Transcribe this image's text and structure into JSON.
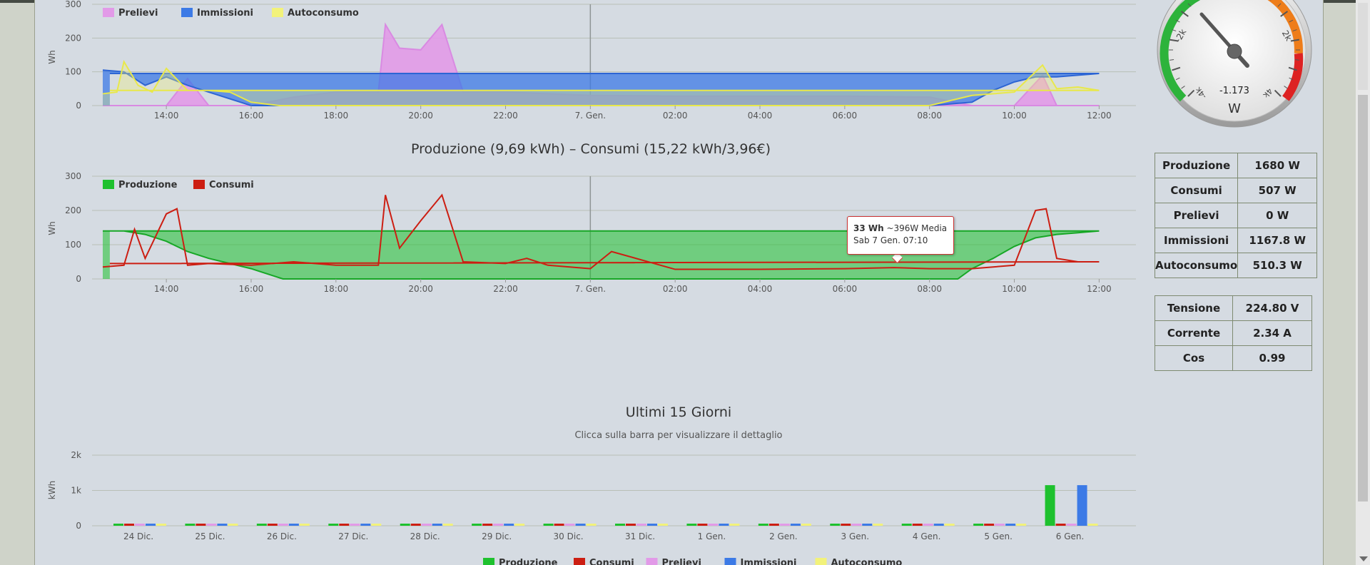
{
  "chart1": {
    "legend": [
      {
        "label": "Prelievi",
        "color": "#e29ae8"
      },
      {
        "label": "Immissioni",
        "color": "#3c7ae6"
      },
      {
        "label": "Autoconsumo",
        "color": "#f2f27a"
      }
    ],
    "ylabel": "Wh",
    "yticks": [
      "0",
      "100",
      "200",
      "300"
    ],
    "xticks": [
      "14:00",
      "16:00",
      "18:00",
      "20:00",
      "22:00",
      "7. Gen.",
      "02:00",
      "04:00",
      "06:00",
      "08:00",
      "10:00",
      "12:00"
    ]
  },
  "chart2": {
    "title": "Produzione (9,69 kWh) – Consumi (15,22 kWh/3,96€)",
    "legend": [
      {
        "label": "Produzione",
        "color": "#1ec12e"
      },
      {
        "label": "Consumi",
        "color": "#cc1e12"
      }
    ],
    "ylabel": "Wh",
    "yticks": [
      "0",
      "100",
      "200",
      "300"
    ],
    "xticks": [
      "14:00",
      "16:00",
      "18:00",
      "20:00",
      "22:00",
      "7. Gen.",
      "02:00",
      "04:00",
      "06:00",
      "08:00",
      "10:00",
      "12:00"
    ],
    "tooltip": {
      "value": "33 Wh",
      "detail": " ~396W Media",
      "date": "Sab 7 Gen. 07:10"
    }
  },
  "gauge": {
    "value": "-1.173",
    "unit": "W",
    "labels": [
      "-2k",
      "2k",
      "-4k",
      "4k"
    ]
  },
  "stats_power": [
    {
      "label": "Produzione",
      "value": "1680 W"
    },
    {
      "label": "Consumi",
      "value": "507 W"
    },
    {
      "label": "Prelievi",
      "value": "0 W"
    },
    {
      "label": "Immissioni",
      "value": "1167.8 W"
    },
    {
      "label": "Autoconsumo",
      "value": "510.3 W"
    }
  ],
  "stats_grid": [
    {
      "label": "Tensione",
      "value": "224.80 V"
    },
    {
      "label": "Corrente",
      "value": "2.34 A"
    },
    {
      "label": "Cos",
      "value": "0.99"
    }
  ],
  "chart3": {
    "title": "Ultimi 15 Giorni",
    "subtitle": "Clicca sulla barra per visualizzare il dettaglio",
    "ylabel": "kWh",
    "yticks": [
      "0",
      "1k",
      "2k"
    ],
    "legend": [
      {
        "label": "Produzione",
        "color": "#1ec12e"
      },
      {
        "label": "Consumi",
        "color": "#cc1e12"
      },
      {
        "label": "Prelievi",
        "color": "#e29ae8"
      },
      {
        "label": "Immissioni",
        "color": "#3c7ae6"
      },
      {
        "label": "Autoconsumo",
        "color": "#f2f27a"
      }
    ]
  },
  "chart_data": [
    {
      "type": "area",
      "ylabel": "Wh",
      "ylim": [
        0,
        300
      ],
      "x_range": [
        "6 Gen. 12:30",
        "7 Gen. 12:40"
      ],
      "shaded_period": [
        "6 Gen. 16:50",
        "7 Gen. 08:00"
      ],
      "series": [
        {
          "name": "Prelievi",
          "x": [
            "12:30",
            "13:00",
            "13:30",
            "14:00",
            "14:30",
            "15:00",
            "16:00",
            "17:00",
            "18:00",
            "19:00",
            "19:10",
            "19:30",
            "20:00",
            "20:30",
            "21:00",
            "22:00",
            "23:00",
            "7. Gen.",
            "02:00",
            "04:00",
            "06:00",
            "08:00",
            "09:00",
            "10:00",
            "10:40",
            "11:00",
            "12:00",
            "12:40"
          ],
          "y": [
            0,
            0,
            0,
            0,
            80,
            0,
            0,
            25,
            40,
            40,
            240,
            170,
            165,
            240,
            40,
            40,
            35,
            30,
            28,
            28,
            28,
            25,
            0,
            0,
            90,
            0,
            0,
            0
          ]
        },
        {
          "name": "Immissioni",
          "x": [
            "12:30",
            "13:00",
            "13:30",
            "14:00",
            "14:30",
            "15:00",
            "15:30",
            "16:00",
            "08:00",
            "09:00",
            "09:30",
            "10:00",
            "10:30",
            "11:00",
            "11:30",
            "12:00",
            "12:40"
          ],
          "y": [
            105,
            100,
            60,
            85,
            60,
            40,
            20,
            0,
            0,
            10,
            45,
            70,
            85,
            85,
            90,
            95,
            95
          ]
        },
        {
          "name": "Autoconsumo",
          "x": [
            "12:30",
            "12:50",
            "13:00",
            "13:20",
            "13:40",
            "14:00",
            "14:30",
            "15:00",
            "15:30",
            "16:00",
            "16:40",
            "08:00",
            "09:00",
            "10:00",
            "10:40",
            "11:00",
            "11:30",
            "12:00",
            "12:40"
          ],
          "y": [
            35,
            40,
            130,
            60,
            40,
            110,
            45,
            45,
            40,
            10,
            0,
            0,
            30,
            40,
            120,
            50,
            55,
            45,
            45
          ]
        }
      ]
    },
    {
      "type": "area",
      "title": "Produzione (9,69 kWh) – Consumi (15,22 kWh/3,96€)",
      "ylabel": "Wh",
      "ylim": [
        0,
        300
      ],
      "x_range": [
        "6 Gen. 12:30",
        "7 Gen. 12:40"
      ],
      "series": [
        {
          "name": "Produzione",
          "x": [
            "12:30",
            "13:00",
            "13:30",
            "14:00",
            "14:30",
            "15:00",
            "15:30",
            "16:00",
            "16:30",
            "16:45",
            "08:40",
            "09:00",
            "09:30",
            "10:00",
            "10:30",
            "11:00",
            "11:30",
            "12:00",
            "12:40"
          ],
          "y": [
            140,
            140,
            130,
            110,
            80,
            60,
            45,
            30,
            10,
            0,
            0,
            30,
            60,
            95,
            120,
            130,
            135,
            140,
            140
          ]
        },
        {
          "name": "Consumi",
          "x": [
            "12:30",
            "13:00",
            "13:15",
            "13:30",
            "14:00",
            "14:15",
            "14:30",
            "15:00",
            "16:00",
            "17:00",
            "18:00",
            "19:00",
            "19:10",
            "19:30",
            "20:00",
            "20:30",
            "21:00",
            "22:00",
            "22:30",
            "23:00",
            "7. Gen.",
            "00:30",
            "02:00",
            "04:00",
            "06:00",
            "07:10",
            "08:00",
            "09:00",
            "10:00",
            "10:30",
            "10:45",
            "11:00",
            "11:30",
            "12:00",
            "12:40"
          ],
          "y": [
            35,
            40,
            145,
            60,
            190,
            205,
            40,
            45,
            40,
            50,
            40,
            40,
            245,
            90,
            170,
            245,
            50,
            45,
            60,
            40,
            30,
            80,
            28,
            28,
            30,
            33,
            30,
            30,
            40,
            200,
            205,
            60,
            50,
            50,
            45
          ]
        }
      ]
    },
    {
      "type": "bar",
      "title": "Ultimi 15 Giorni",
      "subtitle": "Clicca sulla barra per visualizzare il dettaglio",
      "ylabel": "kWh",
      "ylim": [
        0,
        2000
      ],
      "categories": [
        "24 Dic.",
        "25 Dic.",
        "26 Dic.",
        "27 Dic.",
        "28 Dic.",
        "29 Dic.",
        "30 Dic.",
        "31 Dic.",
        "1 Gen.",
        "2 Gen.",
        "3 Gen.",
        "4 Gen.",
        "5 Gen.",
        "6 Gen."
      ],
      "series": [
        {
          "name": "Produzione",
          "values": [
            0,
            0,
            0,
            0,
            0,
            0,
            0,
            0,
            0,
            0,
            0,
            0,
            0,
            1150
          ]
        },
        {
          "name": "Consumi",
          "values": [
            0,
            0,
            0,
            0,
            0,
            0,
            0,
            0,
            0,
            0,
            0,
            0,
            0,
            0
          ]
        },
        {
          "name": "Prelievi",
          "values": [
            0,
            0,
            0,
            0,
            0,
            0,
            0,
            0,
            0,
            0,
            0,
            0,
            0,
            0
          ]
        },
        {
          "name": "Immissioni",
          "values": [
            0,
            0,
            0,
            0,
            0,
            0,
            0,
            0,
            0,
            0,
            0,
            0,
            0,
            1150
          ]
        },
        {
          "name": "Autoconsumo",
          "values": [
            0,
            0,
            0,
            0,
            0,
            0,
            0,
            0,
            0,
            0,
            0,
            0,
            0,
            0
          ]
        }
      ]
    }
  ]
}
